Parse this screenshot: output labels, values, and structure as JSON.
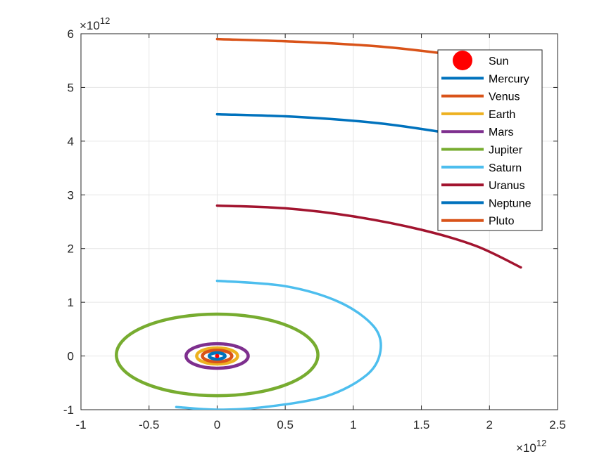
{
  "chart_data": {
    "type": "line",
    "title": "",
    "xlabel": "",
    "ylabel": "",
    "xlim": [
      -1000000000000.0,
      2500000000000.0
    ],
    "ylim": [
      -1000000000000.0,
      6000000000000.0
    ],
    "grid": true,
    "legend_location": "top-right",
    "x_ticks": [
      {
        "value": -1000000000000.0,
        "label": "-1"
      },
      {
        "value": -500000000000.0,
        "label": "-0.5"
      },
      {
        "value": 0,
        "label": "0"
      },
      {
        "value": 500000000000.0,
        "label": "0.5"
      },
      {
        "value": 1000000000000.0,
        "label": "1"
      },
      {
        "value": 1500000000000.0,
        "label": "1.5"
      },
      {
        "value": 2000000000000.0,
        "label": "2"
      },
      {
        "value": 2500000000000.0,
        "label": "2.5"
      }
    ],
    "y_ticks": [
      {
        "value": -1000000000000.0,
        "label": "-1"
      },
      {
        "value": 0,
        "label": "0"
      },
      {
        "value": 1000000000000.0,
        "label": "1"
      },
      {
        "value": 2000000000000.0,
        "label": "2"
      },
      {
        "value": 3000000000000.0,
        "label": "3"
      },
      {
        "value": 4000000000000.0,
        "label": "4"
      },
      {
        "value": 5000000000000.0,
        "label": "5"
      },
      {
        "value": 6000000000000.0,
        "label": "6"
      }
    ],
    "x_exponent": {
      "base": "×10",
      "power": "12"
    },
    "y_exponent": {
      "base": "×10",
      "power": "12"
    },
    "series": [
      {
        "name": "Sun",
        "kind": "marker",
        "color": "#FF0000",
        "points": [
          [
            0,
            0
          ]
        ]
      },
      {
        "name": "Mercury",
        "kind": "line",
        "color": "#0072BD",
        "orbit": {
          "rx": 58000000000.0,
          "ry": 58000000000.0
        }
      },
      {
        "name": "Venus",
        "kind": "line",
        "color": "#D95319",
        "orbit": {
          "rx": 108000000000.0,
          "ry": 108000000000.0
        }
      },
      {
        "name": "Earth",
        "kind": "line",
        "color": "#EDB120",
        "orbit": {
          "rx": 150000000000.0,
          "ry": 150000000000.0
        }
      },
      {
        "name": "Mars",
        "kind": "line",
        "color": "#7E2F8E",
        "orbit": {
          "rx": 228000000000.0,
          "ry": 228000000000.0
        }
      },
      {
        "name": "Jupiter",
        "kind": "line",
        "color": "#77AC30",
        "orbit": {
          "rx": 740000000000.0,
          "ry": 760000000000.0,
          "cx": 0,
          "cy": 20000000000.0
        }
      },
      {
        "name": "Saturn",
        "kind": "line",
        "color": "#4DBEEE",
        "points": [
          [
            0,
            1400000000000.0
          ],
          [
            500000000000.0,
            1300000000000.0
          ],
          [
            900000000000.0,
            1000000000000.0
          ],
          [
            1150000000000.0,
            550000000000.0
          ],
          [
            1200000000000.0,
            100000000000.0
          ],
          [
            1100000000000.0,
            -350000000000.0
          ],
          [
            800000000000.0,
            -750000000000.0
          ],
          [
            350000000000.0,
            -950000000000.0
          ],
          [
            0,
            -1000000000000.0
          ],
          [
            -300000000000.0,
            -950000000000.0
          ]
        ]
      },
      {
        "name": "Uranus",
        "kind": "line",
        "color": "#A2142F",
        "points": [
          [
            0,
            2800000000000.0
          ],
          [
            500000000000.0,
            2750000000000.0
          ],
          [
            1000000000000.0,
            2600000000000.0
          ],
          [
            1500000000000.0,
            2350000000000.0
          ],
          [
            1900000000000.0,
            2050000000000.0
          ],
          [
            2230000000000.0,
            1650000000000.0
          ]
        ]
      },
      {
        "name": "Neptune",
        "kind": "line",
        "color": "#0072BD",
        "points": [
          [
            0,
            4500000000000.0
          ],
          [
            600000000000.0,
            4450000000000.0
          ],
          [
            1200000000000.0,
            4330000000000.0
          ],
          [
            1700000000000.0,
            4150000000000.0
          ],
          [
            2200000000000.0,
            3950000000000.0
          ]
        ]
      },
      {
        "name": "Pluto",
        "kind": "line",
        "color": "#D95319",
        "points": [
          [
            0,
            5900000000000.0
          ],
          [
            600000000000.0,
            5850000000000.0
          ],
          [
            1200000000000.0,
            5760000000000.0
          ],
          [
            1700000000000.0,
            5620000000000.0
          ],
          [
            2200000000000.0,
            5450000000000.0
          ]
        ]
      }
    ]
  }
}
